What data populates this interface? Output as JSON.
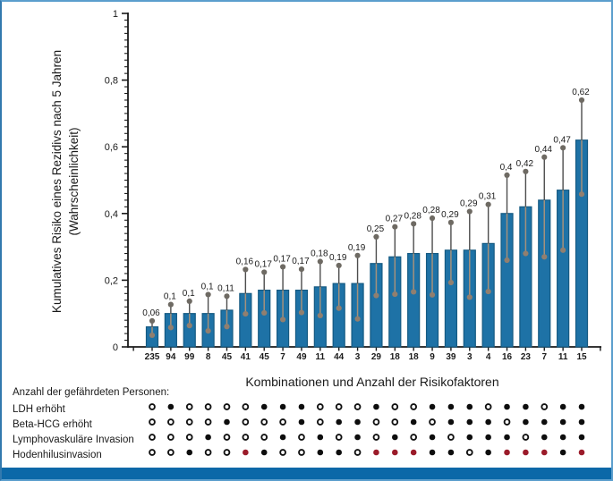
{
  "frame": {
    "border_color": "#5b9ecd",
    "border_left_color": "#3279ae",
    "bottom_strip_color": "#0b68a8",
    "background": "#ffffff"
  },
  "chart_data": {
    "type": "bar",
    "title": "",
    "xlabel": "Kombinationen und Anzahl der Risikofaktoren",
    "ylabel_line1": "Kumulatives Risiko eines Rezidivs nach 5 Jahren",
    "ylabel_line2": "(Wahrscheinlichkeit)",
    "ylim": [
      0,
      1
    ],
    "grid": "off",
    "ytick_labels": [
      {
        "v": 0,
        "label": "0"
      },
      {
        "v": 0.2,
        "label": "0,2"
      },
      {
        "v": 0.4,
        "label": "0,4"
      },
      {
        "v": 0.6,
        "label": "0,6"
      },
      {
        "v": 0.8,
        "label": "0,8"
      },
      {
        "v": 1,
        "label": "1"
      }
    ],
    "minor_tick_step": 0.02,
    "bar_color": "#1e72a6",
    "bar_border_color": "#155a82",
    "whisker_color": "#4d4d4d",
    "whisker_inner_color": "#a4917c",
    "upper_dot_color": "#6e6a63",
    "lower_dot_color": "#917f6f",
    "bars": [
      {
        "label": "0,06",
        "value": 0.06,
        "ci_low": 0.035,
        "ci_high": 0.078,
        "n": "235"
      },
      {
        "label": "0,1",
        "value": 0.1,
        "ci_low": 0.058,
        "ci_high": 0.127,
        "n": "94"
      },
      {
        "label": "0,1",
        "value": 0.1,
        "ci_low": 0.064,
        "ci_high": 0.137,
        "n": "99"
      },
      {
        "label": "0,1",
        "value": 0.1,
        "ci_low": 0.048,
        "ci_high": 0.157,
        "n": "8"
      },
      {
        "label": "0,11",
        "value": 0.11,
        "ci_low": 0.061,
        "ci_high": 0.152,
        "n": "45"
      },
      {
        "label": "0,16",
        "value": 0.16,
        "ci_low": 0.099,
        "ci_high": 0.232,
        "n": "41"
      },
      {
        "label": "0,17",
        "value": 0.17,
        "ci_low": 0.102,
        "ci_high": 0.224,
        "n": "45"
      },
      {
        "label": "0,17",
        "value": 0.17,
        "ci_low": 0.082,
        "ci_high": 0.24,
        "n": "7"
      },
      {
        "label": "0,17",
        "value": 0.17,
        "ci_low": 0.103,
        "ci_high": 0.233,
        "n": "49"
      },
      {
        "label": "0,18",
        "value": 0.18,
        "ci_low": 0.094,
        "ci_high": 0.256,
        "n": "11"
      },
      {
        "label": "0,19",
        "value": 0.19,
        "ci_low": 0.116,
        "ci_high": 0.244,
        "n": "44"
      },
      {
        "label": "0,19",
        "value": 0.19,
        "ci_low": 0.084,
        "ci_high": 0.274,
        "n": "3"
      },
      {
        "label": "0,25",
        "value": 0.25,
        "ci_low": 0.154,
        "ci_high": 0.33,
        "n": "29"
      },
      {
        "label": "0,27",
        "value": 0.27,
        "ci_low": 0.158,
        "ci_high": 0.36,
        "n": "18"
      },
      {
        "label": "0,28",
        "value": 0.28,
        "ci_low": 0.165,
        "ci_high": 0.369,
        "n": "18"
      },
      {
        "label": "0,28",
        "value": 0.28,
        "ci_low": 0.156,
        "ci_high": 0.386,
        "n": "9"
      },
      {
        "label": "0,29",
        "value": 0.29,
        "ci_low": 0.193,
        "ci_high": 0.373,
        "n": "39"
      },
      {
        "label": "0,29",
        "value": 0.29,
        "ci_low": 0.149,
        "ci_high": 0.406,
        "n": "3"
      },
      {
        "label": "0,31",
        "value": 0.31,
        "ci_low": 0.166,
        "ci_high": 0.427,
        "n": "4"
      },
      {
        "label": "0,4",
        "value": 0.4,
        "ci_low": 0.26,
        "ci_high": 0.515,
        "n": "16"
      },
      {
        "label": "0,42",
        "value": 0.42,
        "ci_low": 0.28,
        "ci_high": 0.526,
        "n": "23"
      },
      {
        "label": "0,44",
        "value": 0.44,
        "ci_low": 0.27,
        "ci_high": 0.569,
        "n": "7"
      },
      {
        "label": "0,47",
        "value": 0.47,
        "ci_low": 0.29,
        "ci_high": 0.597,
        "n": "11"
      },
      {
        "label": "0,62",
        "value": 0.62,
        "ci_low": 0.458,
        "ci_high": 0.74,
        "n": "15"
      }
    ]
  },
  "risk_matrix": {
    "intro_label": "Anzahl der gefährdeten Personen:",
    "row_labels": [
      "LDH erhöht",
      "Beta-HCG erhöht",
      "Lymphovaskuläre Invasion",
      "Hodenhilusinvasion"
    ],
    "dot_legend": {
      "0": "open-circle-absent",
      "1": "black-dot-present",
      "2": "red-dot-present"
    },
    "columns": [
      [
        0,
        0,
        0,
        0
      ],
      [
        1,
        0,
        0,
        0
      ],
      [
        0,
        0,
        0,
        1
      ],
      [
        0,
        0,
        1,
        0
      ],
      [
        0,
        1,
        0,
        0
      ],
      [
        0,
        0,
        0,
        2
      ],
      [
        1,
        0,
        0,
        1
      ],
      [
        1,
        0,
        1,
        0
      ],
      [
        1,
        1,
        0,
        0
      ],
      [
        0,
        0,
        1,
        1
      ],
      [
        0,
        1,
        0,
        1
      ],
      [
        0,
        1,
        1,
        0
      ],
      [
        1,
        0,
        0,
        2
      ],
      [
        0,
        0,
        1,
        2
      ],
      [
        0,
        1,
        0,
        2
      ],
      [
        1,
        0,
        1,
        1
      ],
      [
        1,
        1,
        0,
        1
      ],
      [
        1,
        1,
        1,
        0
      ],
      [
        0,
        1,
        1,
        1
      ],
      [
        1,
        0,
        1,
        2
      ],
      [
        1,
        1,
        0,
        2
      ],
      [
        0,
        1,
        1,
        2
      ],
      [
        1,
        1,
        1,
        1
      ],
      [
        1,
        1,
        1,
        2
      ]
    ],
    "dot_black": "#0d0d0d",
    "dot_red": "#9b1b2a",
    "dot_open_ring": "#111111"
  }
}
